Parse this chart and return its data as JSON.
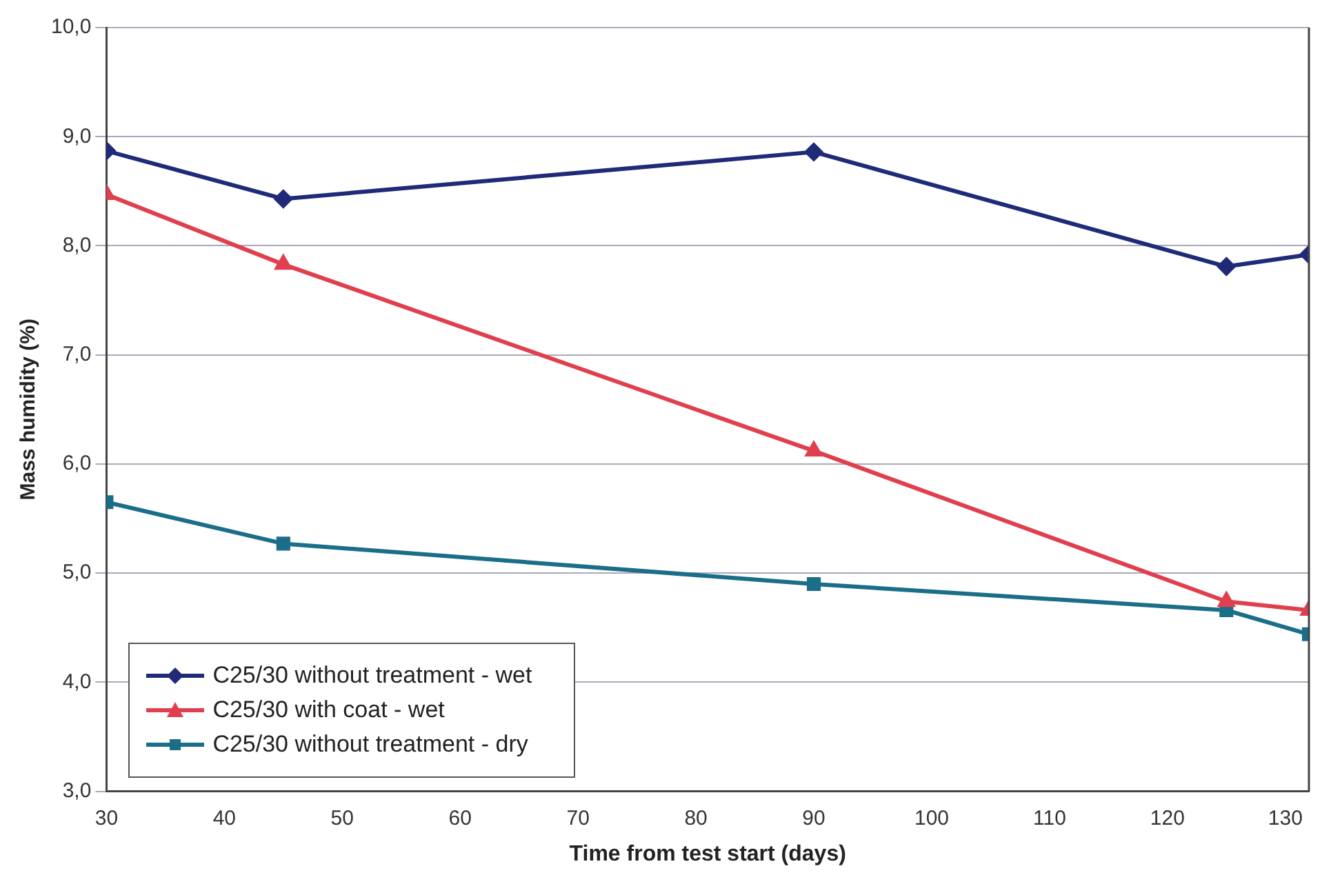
{
  "chart_data": {
    "type": "line",
    "xlabel": "Time from test start (days)",
    "ylabel": "Mass humidity (%)",
    "x": [
      30,
      45,
      90,
      125,
      132
    ],
    "series": [
      {
        "name": "C25/30 without treatment - wet",
        "color": "#1f2a78",
        "marker": "diamond",
        "values": [
          8.87,
          8.43,
          8.86,
          7.81,
          7.92
        ]
      },
      {
        "name": "C25/30 with coat - wet",
        "color": "#e0404e",
        "marker": "triangle",
        "values": [
          8.47,
          7.83,
          6.12,
          4.74,
          4.66
        ]
      },
      {
        "name": "C25/30 without treatment - dry",
        "color": "#1a6e88",
        "marker": "square",
        "values": [
          5.65,
          5.27,
          4.9,
          4.66,
          4.44
        ]
      }
    ],
    "xlim": [
      30,
      132
    ],
    "xticks": [
      30,
      40,
      50,
      60,
      70,
      80,
      90,
      100,
      110,
      120,
      130
    ],
    "ylim": [
      3,
      10
    ],
    "yticks": [
      {
        "value": 3,
        "label": "3,0"
      },
      {
        "value": 4,
        "label": "4,0"
      },
      {
        "value": 5,
        "label": "5,0"
      },
      {
        "value": 6,
        "label": "6,0"
      },
      {
        "value": 7,
        "label": "7,0"
      },
      {
        "value": 8,
        "label": "8,0"
      },
      {
        "value": 9,
        "label": "9,0"
      },
      {
        "value": 10,
        "label": "10,0"
      }
    ],
    "grid": "y",
    "legend": "bottom left",
    "line_style": "solid"
  }
}
